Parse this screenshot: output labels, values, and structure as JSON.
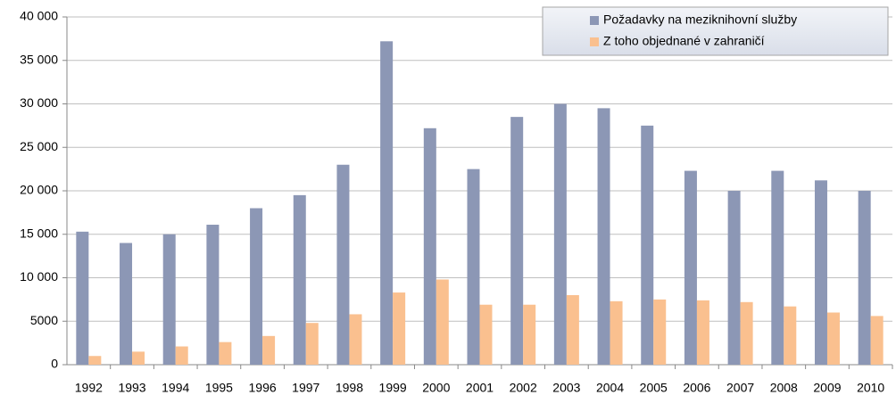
{
  "chart_data": {
    "type": "bar",
    "categories": [
      "1992",
      "1993",
      "1994",
      "1995",
      "1996",
      "1997",
      "1998",
      "1999",
      "2000",
      "2001",
      "2002",
      "2003",
      "2004",
      "2005",
      "2006",
      "2007",
      "2008",
      "2009",
      "2010"
    ],
    "series": [
      {
        "name": "Požadavky na meziknihovní služby",
        "color": "#8c97b5",
        "values": [
          15300,
          14000,
          15000,
          16100,
          18000,
          19500,
          23000,
          37200,
          27200,
          22500,
          28500,
          30000,
          29500,
          27500,
          22300,
          20000,
          22300,
          21200,
          20000
        ]
      },
      {
        "name": "Z toho objednané v zahraničí",
        "color": "#fac08f",
        "values": [
          1000,
          1500,
          2100,
          2600,
          3300,
          4800,
          5800,
          8300,
          9800,
          6900,
          6900,
          8000,
          7300,
          7500,
          7400,
          7200,
          6700,
          6000,
          5600
        ]
      }
    ],
    "ylim": [
      0,
      40000
    ],
    "yticks": [
      0,
      5000,
      {
        "value": 10000,
        "label": "10 000"
      },
      {
        "value": 15000,
        "label": "15 000"
      },
      {
        "value": 20000,
        "label": "20 000"
      },
      {
        "value": 25000,
        "label": "25 000"
      },
      {
        "value": 30000,
        "label": "30 000"
      },
      {
        "value": 35000,
        "label": "35 000"
      },
      {
        "value": 40000,
        "label": "40 000"
      }
    ],
    "grid": true,
    "legend": "top-right"
  }
}
